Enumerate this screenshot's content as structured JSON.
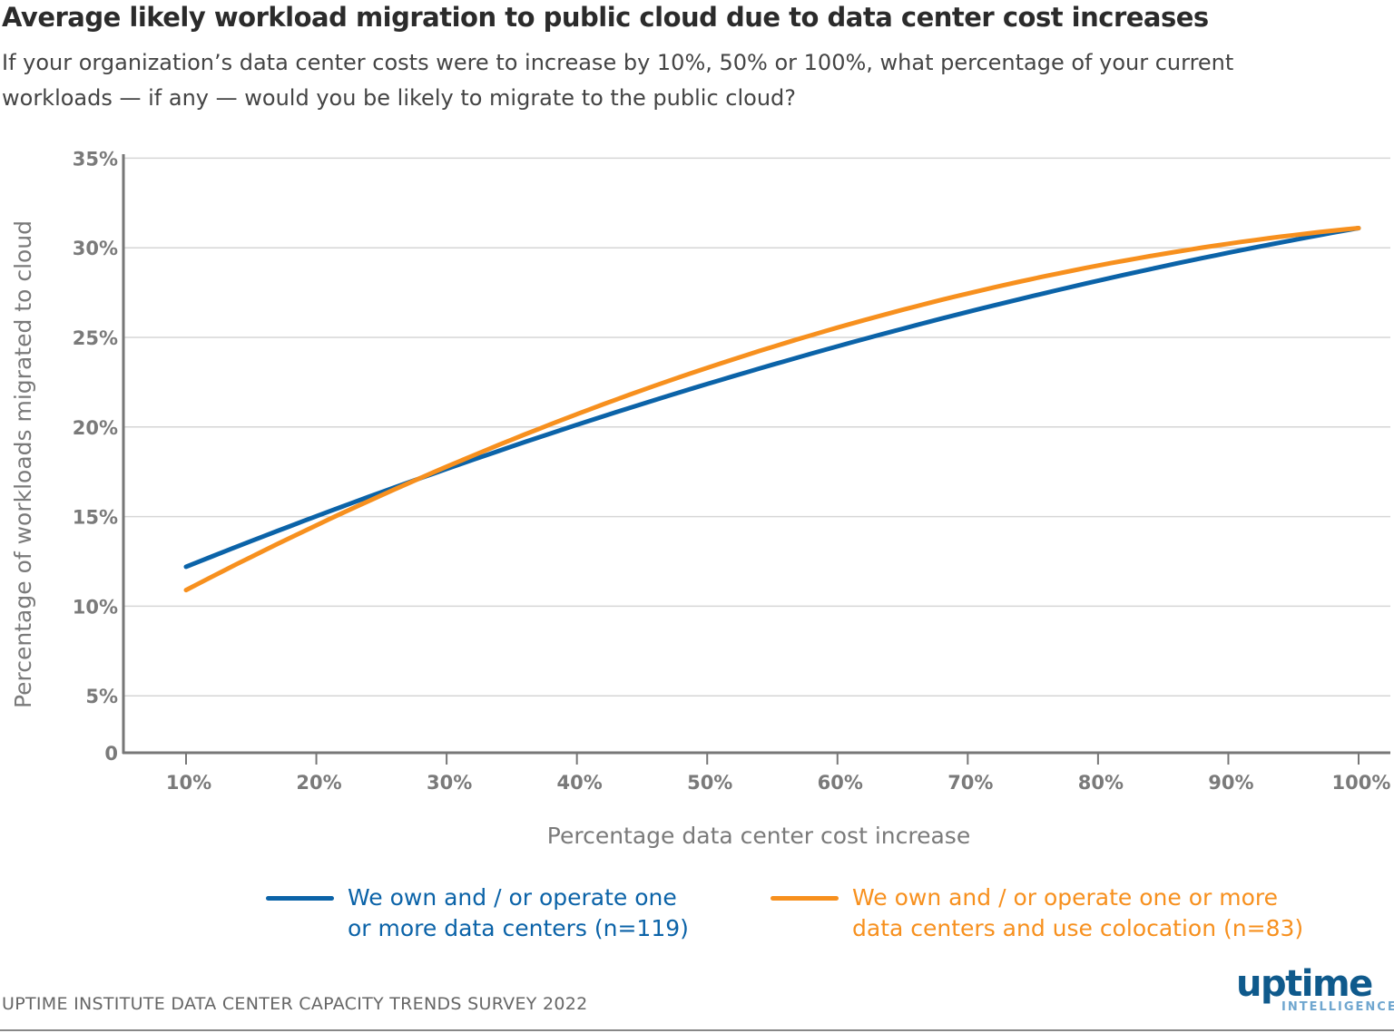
{
  "chart_data": {
    "type": "line",
    "title": "Average likely workload migration to public cloud due to data center cost increases",
    "subtitle": "If your organization’s data center costs were to increase by 10%, 50% or 100%, what percentage of your current workloads — if any — would you be likely to migrate to the public cloud?",
    "xlabel": "Percentage data center cost increase",
    "ylabel": "Percentage of workloads migrated to cloud",
    "x_ticks": [
      "10%",
      "20%",
      "30%",
      "40%",
      "50%",
      "60%",
      "70%",
      "80%",
      "90%",
      "100%"
    ],
    "y_ticks": [
      "0",
      "5%",
      "10%",
      "15%",
      "20%",
      "25%",
      "30%",
      "35%"
    ],
    "ylim": [
      0,
      35
    ],
    "xlim": [
      10,
      100
    ],
    "grid": "horizontal",
    "legend_position": "bottom",
    "x": [
      10,
      50,
      100
    ],
    "series": [
      {
        "name": "We own and / or operate one or more data centers (n=119)",
        "legend_lines": [
          "We own and / or operate one",
          "or more data centers (n=119)"
        ],
        "color": "#0b63a8",
        "values": [
          12.2,
          22.4,
          31.1
        ]
      },
      {
        "name": "We own and / or operate one or more data centers and use colocation (n=83)",
        "legend_lines": [
          "We own and / or operate one or more",
          "data centers and use colocation (n=83)"
        ],
        "color": "#f7901e",
        "values": [
          10.9,
          23.3,
          31.1
        ]
      }
    ]
  },
  "source": "UPTIME INSTITUTE DATA CENTER CAPACITY TRENDS SURVEY 2022",
  "logo": {
    "name": "uptime",
    "sub": "INTELLIGENCE"
  }
}
